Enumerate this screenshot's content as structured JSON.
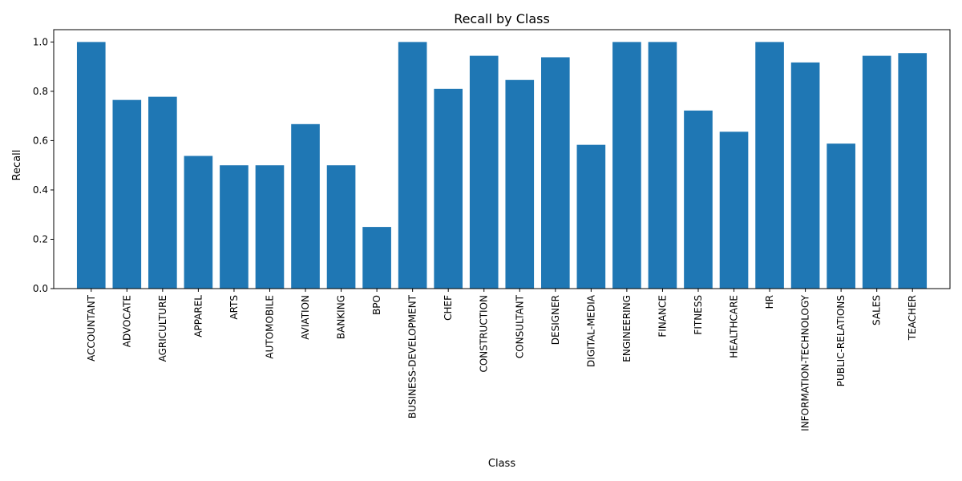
{
  "chart_data": {
    "type": "bar",
    "title": "Recall by Class",
    "xlabel": "Class",
    "ylabel": "Recall",
    "ylim": [
      0,
      1.05
    ],
    "grid": false,
    "bar_color": "#1f77b4",
    "categories": [
      "ACCOUNTANT",
      "ADVOCATE",
      "AGRICULTURE",
      "APPAREL",
      "ARTS",
      "AUTOMOBILE",
      "AVIATION",
      "BANKING",
      "BPO",
      "BUSINESS-DEVELOPMENT",
      "CHEF",
      "CONSTRUCTION",
      "CONSULTANT",
      "DESIGNER",
      "DIGITAL-MEDIA",
      "ENGINEERING",
      "FINANCE",
      "FITNESS",
      "HEALTHCARE",
      "HR",
      "INFORMATION-TECHNOLOGY",
      "PUBLIC-RELATIONS",
      "SALES",
      "TEACHER"
    ],
    "values": [
      1.0,
      0.765,
      0.778,
      0.538,
      0.5,
      0.5,
      0.667,
      0.5,
      0.25,
      1.0,
      0.81,
      0.944,
      0.846,
      0.938,
      0.583,
      1.0,
      1.0,
      0.722,
      0.636,
      1.0,
      0.917,
      0.588,
      0.944,
      0.955
    ],
    "yticks": [
      0.0,
      0.2,
      0.4,
      0.6,
      0.8,
      1.0
    ],
    "ytick_labels": [
      "0.0",
      "0.2",
      "0.4",
      "0.6",
      "0.8",
      "1.0"
    ]
  }
}
